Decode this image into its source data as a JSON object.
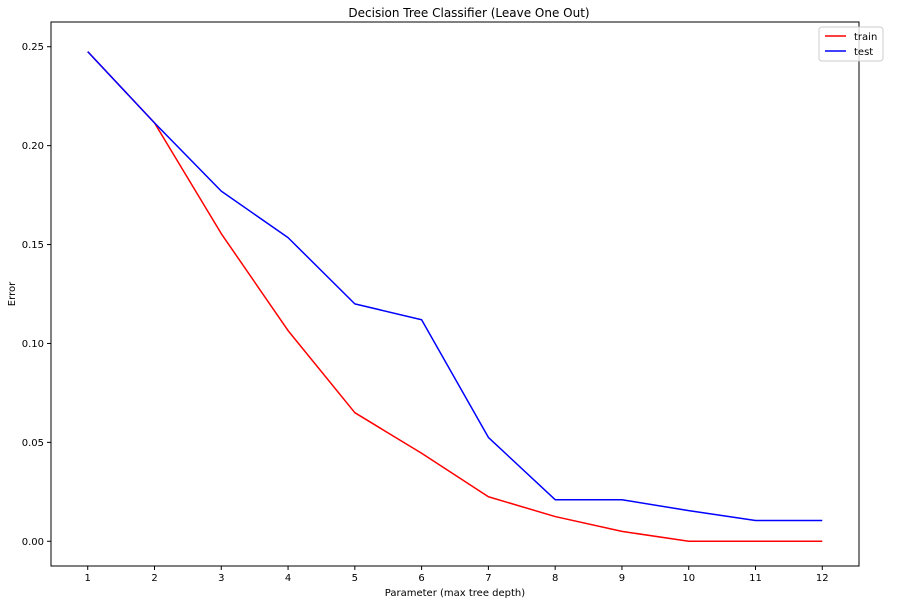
{
  "chart_data": {
    "type": "line",
    "title": "Decision Tree Classifier (Leave One Out)",
    "xlabel": "Parameter (max tree depth)",
    "ylabel": "Error",
    "x": [
      1,
      2,
      3,
      4,
      5,
      6,
      7,
      8,
      9,
      10,
      11,
      12
    ],
    "xlim": [
      0.45,
      12.55
    ],
    "ylim": [
      -0.0125,
      0.2625
    ],
    "yticks": [
      0.0,
      0.05,
      0.1,
      0.15,
      0.2,
      0.25
    ],
    "ytick_labels": [
      "0.00",
      "0.05",
      "0.10",
      "0.15",
      "0.20",
      "0.25"
    ],
    "xtick_labels": [
      "1",
      "2",
      "3",
      "4",
      "5",
      "6",
      "7",
      "8",
      "9",
      "10",
      "11",
      "12"
    ],
    "grid": false,
    "legend": "top-right",
    "series": [
      {
        "name": "train",
        "color": "#ff0000",
        "values": [
          0.2475,
          0.2115,
          0.1555,
          0.1065,
          0.065,
          0.0445,
          0.0225,
          0.0125,
          0.005,
          0.0,
          0.0,
          0.0
        ]
      },
      {
        "name": "test",
        "color": "#0000ff",
        "values": [
          0.2475,
          0.2115,
          0.177,
          0.1535,
          0.12,
          0.112,
          0.0525,
          0.021,
          0.021,
          0.0155,
          0.0105,
          0.0105
        ]
      }
    ]
  }
}
